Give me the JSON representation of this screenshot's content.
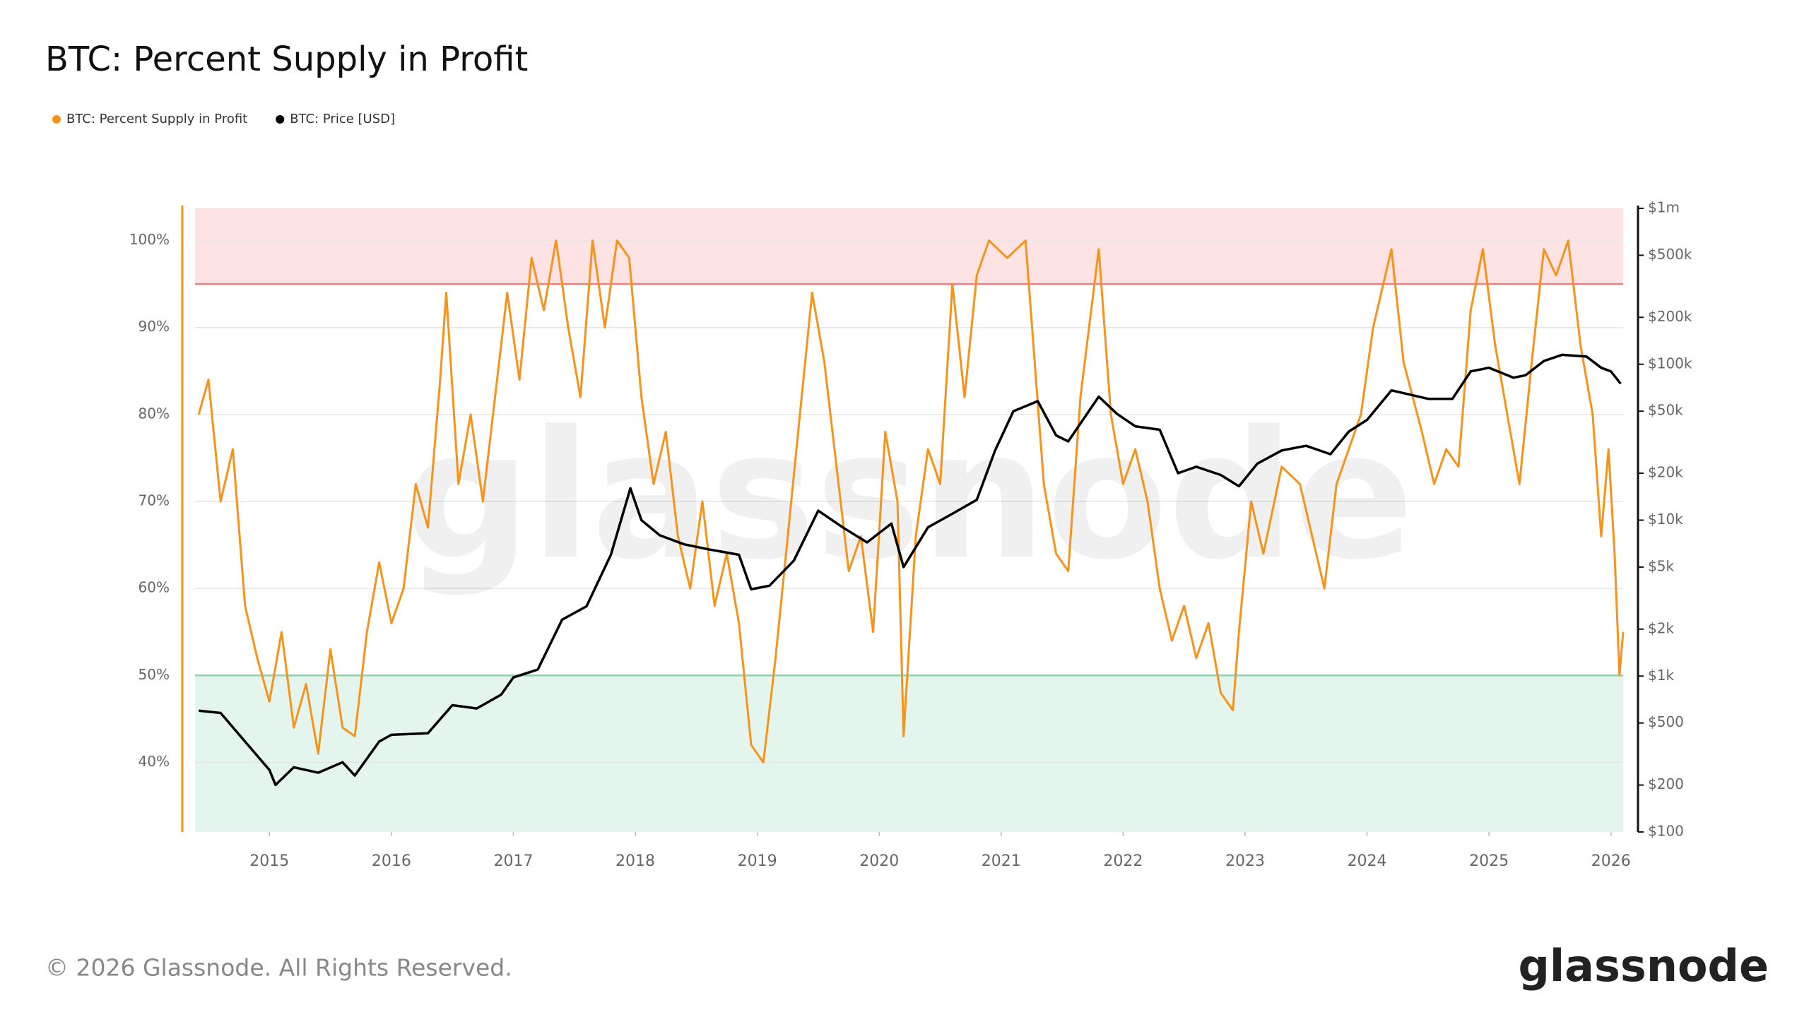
{
  "chart_data": {
    "type": "line",
    "title": "BTC: Percent Supply in Profit",
    "watermark": "glassnode",
    "footer": "© 2026 Glassnode. All Rights Reserved.",
    "logo": "glassnode",
    "xlim": [
      2014.39,
      2026.1
    ],
    "xticks": [
      2015,
      2016,
      2017,
      2018,
      2019,
      2020,
      2021,
      2022,
      2023,
      2024,
      2025,
      2026
    ],
    "ylim": [
      32,
      103.7
    ],
    "yticks": [
      {
        "value": 40,
        "label": "40%"
      },
      {
        "value": 50,
        "label": "50%"
      },
      {
        "value": 60,
        "label": "60%"
      },
      {
        "value": 70,
        "label": "70%"
      },
      {
        "value": 80,
        "label": "80%"
      },
      {
        "value": 90,
        "label": "90%"
      },
      {
        "value": 100,
        "label": "100%"
      }
    ],
    "y2lim": [
      100,
      1000000
    ],
    "y2log": true,
    "y2ticks": [
      {
        "value": 100,
        "label": "$100"
      },
      {
        "value": 200,
        "label": "$200"
      },
      {
        "value": 500,
        "label": "$500"
      },
      {
        "value": 1000,
        "label": "$1k"
      },
      {
        "value": 2000,
        "label": "$2k"
      },
      {
        "value": 5000,
        "label": "$5k"
      },
      {
        "value": 10000,
        "label": "$10k"
      },
      {
        "value": 20000,
        "label": "$20k"
      },
      {
        "value": 50000,
        "label": "$50k"
      },
      {
        "value": 100000,
        "label": "$100k"
      },
      {
        "value": 200000,
        "label": "$200k"
      },
      {
        "value": 500000,
        "label": "$500k"
      },
      {
        "value": 1000000,
        "label": "$1m"
      }
    ],
    "grid": true,
    "upper_threshold": 95,
    "upper_color": "#fde3e3",
    "upper_line_color": "#f08080",
    "lower_threshold": 50,
    "lower_color": "#e3f5ec",
    "lower_line_color": "#8fd1ad",
    "legend": "top-left",
    "series": [
      {
        "name": "BTC: Percent Supply in Profit",
        "color": "#f7931a",
        "x": [
          2014.42,
          2014.5,
          2014.6,
          2014.7,
          2014.8,
          2014.9,
          2015.0,
          2015.1,
          2015.2,
          2015.3,
          2015.4,
          2015.5,
          2015.6,
          2015.7,
          2015.8,
          2015.9,
          2016.0,
          2016.1,
          2016.2,
          2016.3,
          2016.4,
          2016.45,
          2016.55,
          2016.65,
          2016.75,
          2016.85,
          2016.95,
          2017.05,
          2017.15,
          2017.25,
          2017.35,
          2017.45,
          2017.55,
          2017.65,
          2017.75,
          2017.85,
          2017.95,
          2018.05,
          2018.15,
          2018.25,
          2018.35,
          2018.45,
          2018.55,
          2018.65,
          2018.75,
          2018.85,
          2018.95,
          2019.05,
          2019.15,
          2019.25,
          2019.35,
          2019.45,
          2019.55,
          2019.65,
          2019.75,
          2019.85,
          2019.95,
          2020.05,
          2020.15,
          2020.2,
          2020.3,
          2020.4,
          2020.5,
          2020.6,
          2020.7,
          2020.8,
          2020.9,
          2021.05,
          2021.2,
          2021.35,
          2021.45,
          2021.55,
          2021.65,
          2021.8,
          2021.9,
          2022.0,
          2022.1,
          2022.2,
          2022.3,
          2022.4,
          2022.5,
          2022.6,
          2022.7,
          2022.8,
          2022.9,
          2022.95,
          2023.05,
          2023.15,
          2023.3,
          2023.45,
          2023.55,
          2023.65,
          2023.75,
          2023.85,
          2023.95,
          2024.05,
          2024.2,
          2024.3,
          2024.45,
          2024.55,
          2024.65,
          2024.75,
          2024.85,
          2024.95,
          2025.05,
          2025.15,
          2025.25,
          2025.35,
          2025.45,
          2025.55,
          2025.65,
          2025.75,
          2025.85,
          2025.92,
          2025.98,
          2026.03,
          2026.07,
          2026.1
        ],
        "values": [
          80,
          84,
          70,
          76,
          58,
          52,
          47,
          55,
          44,
          49,
          41,
          53,
          44,
          43,
          55,
          63,
          56,
          60,
          72,
          67,
          84,
          94,
          72,
          80,
          70,
          82,
          94,
          84,
          98,
          92,
          100,
          90,
          82,
          100,
          90,
          100,
          98,
          82,
          72,
          78,
          66,
          60,
          70,
          58,
          64,
          56,
          42,
          40,
          52,
          66,
          80,
          94,
          86,
          74,
          62,
          66,
          55,
          78,
          70,
          43,
          66,
          76,
          72,
          95,
          82,
          96,
          100,
          98,
          100,
          72,
          64,
          62,
          82,
          99,
          80,
          72,
          76,
          70,
          60,
          54,
          58,
          52,
          56,
          48,
          46,
          55,
          70,
          64,
          74,
          72,
          66,
          60,
          72,
          76,
          80,
          90,
          99,
          86,
          78,
          72,
          76,
          74,
          92,
          99,
          88,
          80,
          72,
          86,
          99,
          96,
          100,
          88,
          80,
          66,
          76,
          64,
          50,
          55
        ]
      },
      {
        "name": "BTC: Price [USD]",
        "color": "#000000",
        "axis": "y2",
        "x": [
          2014.42,
          2014.6,
          2014.8,
          2015.0,
          2015.05,
          2015.2,
          2015.4,
          2015.6,
          2015.7,
          2015.9,
          2016.0,
          2016.3,
          2016.5,
          2016.7,
          2016.9,
          2017.0,
          2017.2,
          2017.4,
          2017.6,
          2017.8,
          2017.96,
          2018.05,
          2018.2,
          2018.4,
          2018.6,
          2018.85,
          2018.95,
          2019.1,
          2019.3,
          2019.5,
          2019.7,
          2019.9,
          2020.1,
          2020.2,
          2020.4,
          2020.6,
          2020.8,
          2020.95,
          2021.1,
          2021.3,
          2021.45,
          2021.55,
          2021.8,
          2021.95,
          2022.1,
          2022.3,
          2022.45,
          2022.6,
          2022.8,
          2022.95,
          2023.1,
          2023.3,
          2023.5,
          2023.7,
          2023.85,
          2024.0,
          2024.2,
          2024.5,
          2024.7,
          2024.85,
          2025.0,
          2025.2,
          2025.3,
          2025.45,
          2025.6,
          2025.8,
          2025.92,
          2026.0,
          2026.08
        ],
        "values": [
          600,
          580,
          380,
          250,
          200,
          260,
          240,
          280,
          230,
          380,
          420,
          430,
          650,
          620,
          760,
          980,
          1100,
          2300,
          2800,
          6000,
          16000,
          10000,
          8000,
          7000,
          6500,
          6000,
          3600,
          3800,
          5500,
          11500,
          9000,
          7200,
          9500,
          5000,
          9000,
          11000,
          13500,
          28000,
          50000,
          58000,
          35000,
          32000,
          62000,
          48000,
          40000,
          38000,
          20000,
          22000,
          19500,
          16500,
          23000,
          28000,
          30000,
          26500,
          37000,
          44000,
          68000,
          60000,
          60000,
          90000,
          95000,
          82000,
          85000,
          105000,
          115000,
          112000,
          95000,
          90000,
          75000
        ]
      }
    ]
  }
}
